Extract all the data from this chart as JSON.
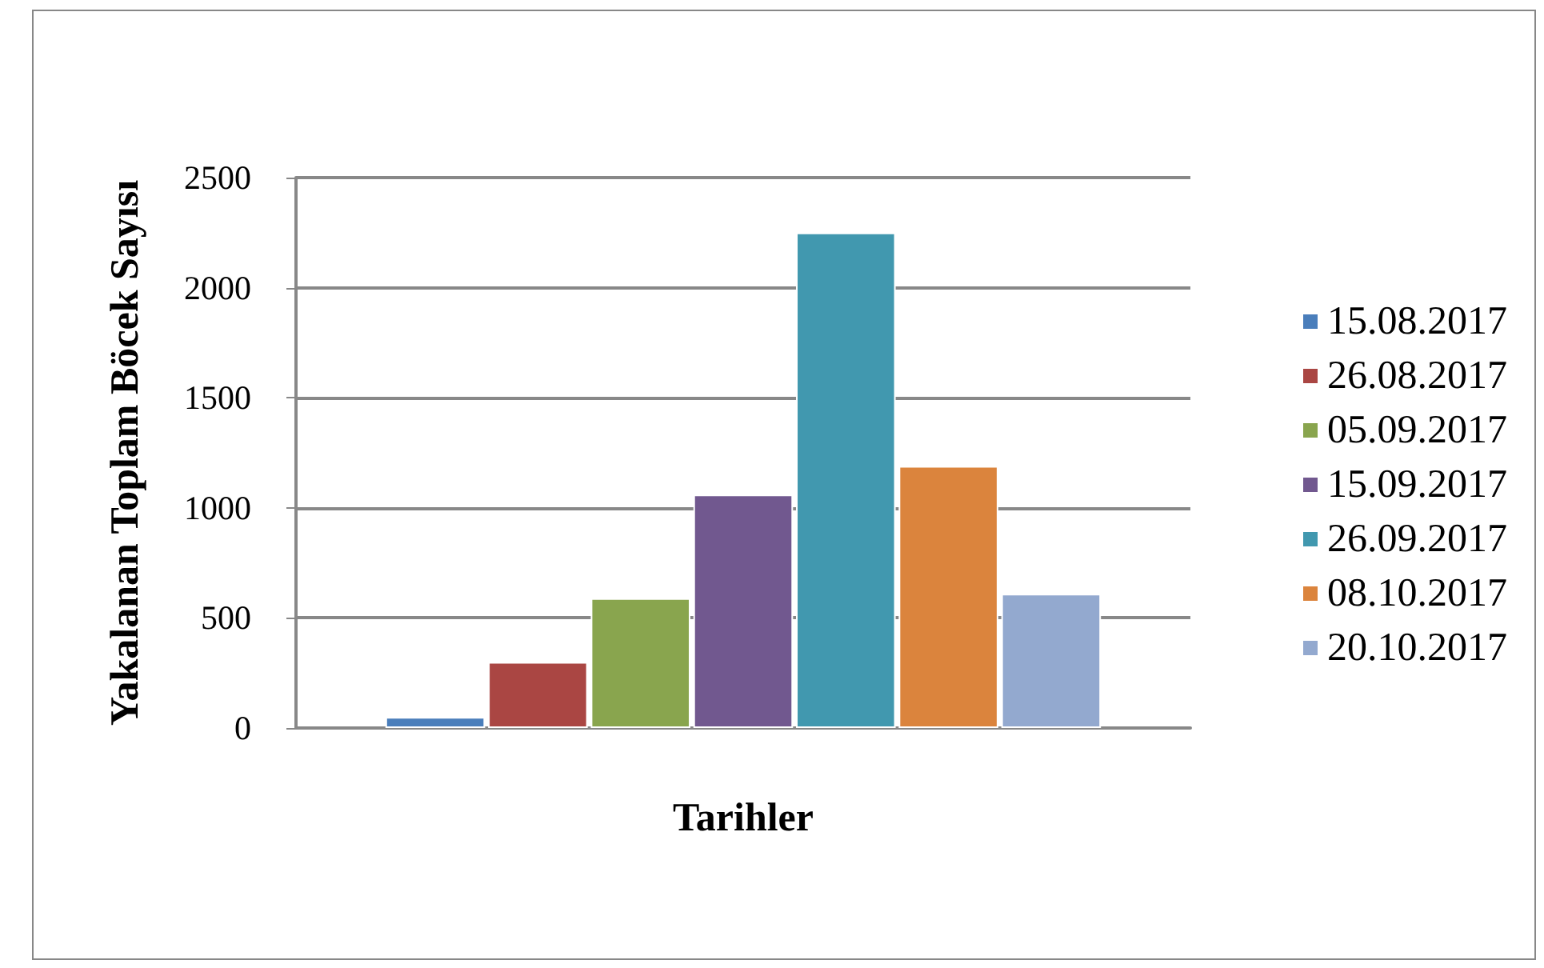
{
  "chart_data": {
    "type": "bar",
    "xlabel": "Tarihler",
    "ylabel": "Yakalanan Toplam Böcek Sayısı",
    "categories": [
      null
    ],
    "series": [
      {
        "name": "15.08.2017",
        "color": "#4a7ebb",
        "values": [
          50
        ]
      },
      {
        "name": "26.08.2017",
        "color": "#aa4643",
        "values": [
          300
        ]
      },
      {
        "name": "05.09.2017",
        "color": "#89a54e",
        "values": [
          590
        ]
      },
      {
        "name": "15.09.2017",
        "color": "#71588f",
        "values": [
          1060
        ]
      },
      {
        "name": "26.09.2017",
        "color": "#4198af",
        "values": [
          2250
        ]
      },
      {
        "name": "08.10.2017",
        "color": "#db843d",
        "values": [
          1190
        ]
      },
      {
        "name": "20.10.2017",
        "color": "#93a9cf",
        "values": [
          610
        ]
      }
    ],
    "ylim": [
      0,
      2500
    ],
    "yticks": [
      0,
      500,
      1000,
      1500,
      2000,
      2500
    ],
    "grid": "y",
    "legend": "right"
  }
}
